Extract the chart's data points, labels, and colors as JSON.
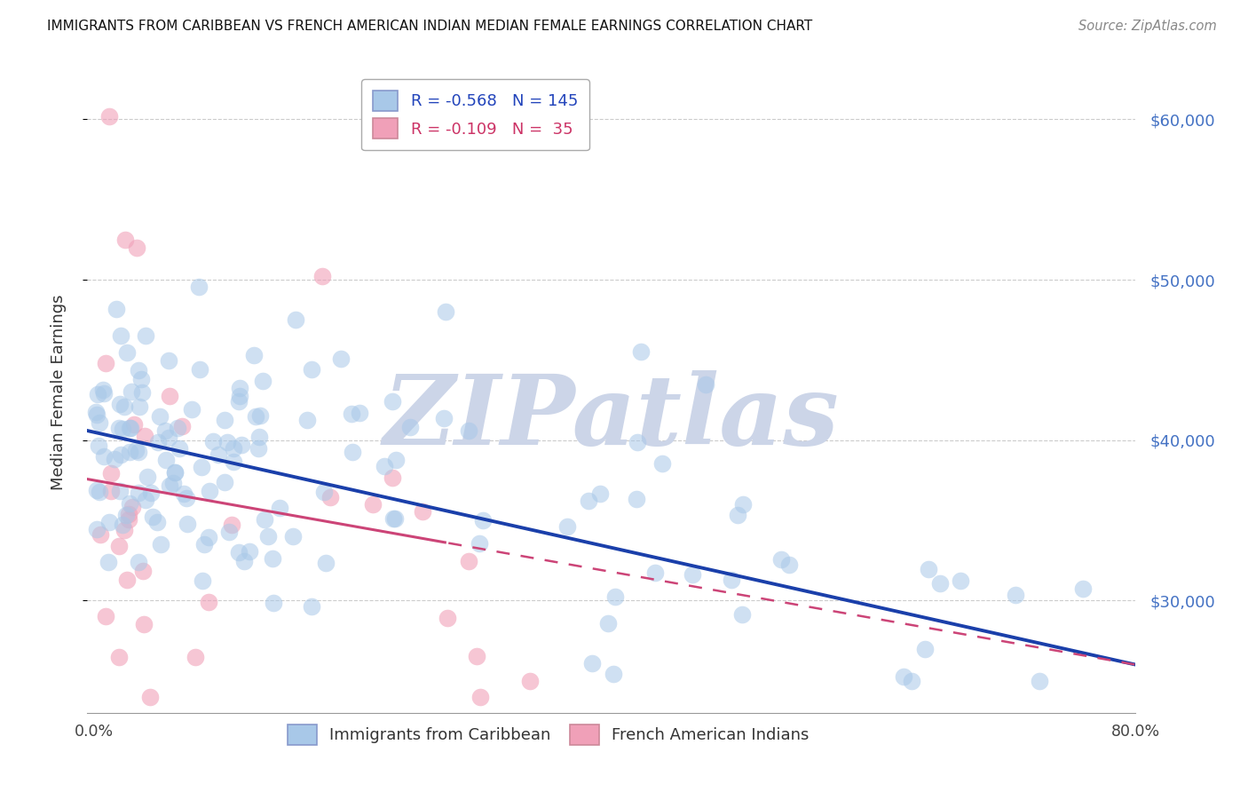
{
  "title": "IMMIGRANTS FROM CARIBBEAN VS FRENCH AMERICAN INDIAN MEDIAN FEMALE EARNINGS CORRELATION CHART",
  "source": "Source: ZipAtlas.com",
  "ylabel": "Median Female Earnings",
  "legend_labels_bottom": [
    "Immigrants from Caribbean",
    "French American Indians"
  ],
  "blue_color": "#a8c8e8",
  "pink_color": "#f0a0b8",
  "blue_line_color": "#1a3faa",
  "pink_line_color": "#cc4477",
  "watermark_text": "ZIPatlas",
  "watermark_color": "#ccd5e8",
  "blue_R": -0.568,
  "blue_N": 145,
  "pink_R": -0.109,
  "pink_N": 35,
  "xlim": [
    -0.005,
    0.8
  ],
  "ylim": [
    23000,
    63000
  ],
  "yticks": [
    30000,
    40000,
    50000,
    60000
  ],
  "ytick_labels": [
    "$30,000",
    "$40,000",
    "$50,000",
    "$60,000"
  ],
  "background_color": "#ffffff",
  "grid_color": "#cccccc",
  "blue_line_y0": 40500,
  "blue_line_y1": 26000,
  "pink_line_y0": 37500,
  "pink_line_y1": 26000
}
